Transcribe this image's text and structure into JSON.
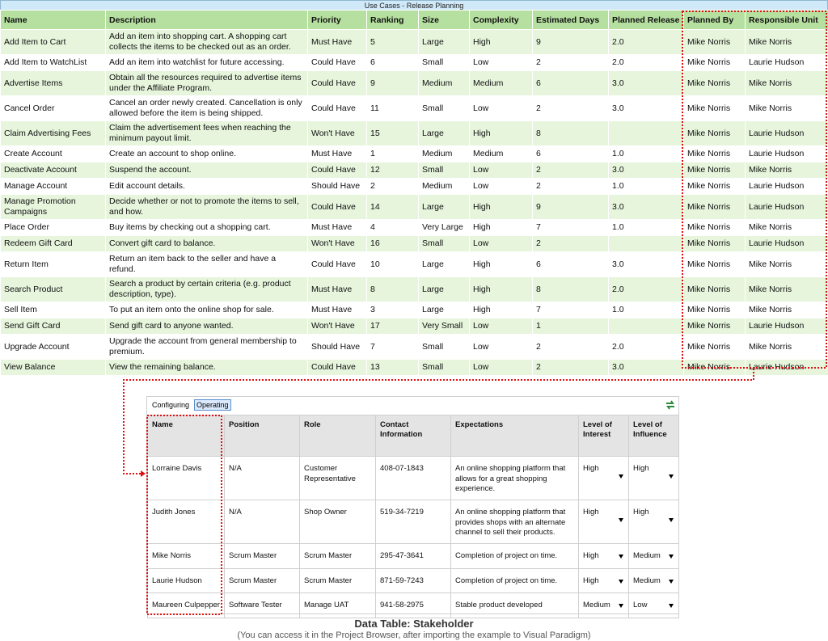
{
  "release_planning": {
    "title": "Use Cases - Release Planning",
    "columns": [
      "Name",
      "Description",
      "Priority",
      "Ranking",
      "Size",
      "Complexity",
      "Estimated Days",
      "Planned Release",
      "Planned By",
      "Responsible Unit"
    ],
    "rows": [
      [
        "Add Item to Cart",
        "Add an item into shopping cart. A shopping cart collects the items to be checked out as an order.",
        "Must Have",
        "5",
        "Large",
        "High",
        "9",
        "2.0",
        "Mike Norris",
        "Mike Norris"
      ],
      [
        "Add Item to WatchList",
        "Add an item into watchlist for future accessing.",
        "Could Have",
        "6",
        "Small",
        "Low",
        "2",
        "2.0",
        "Mike Norris",
        "Laurie Hudson"
      ],
      [
        "Advertise Items",
        "Obtain all the resources required to advertise items under the Affiliate Program.",
        "Could Have",
        "9",
        "Medium",
        "Medium",
        "6",
        "3.0",
        "Mike Norris",
        "Mike Norris"
      ],
      [
        "Cancel Order",
        "Cancel an order newly created. Cancellation is only allowed before the item is being shipped.",
        "Could Have",
        "11",
        "Small",
        "Low",
        "2",
        "3.0",
        "Mike Norris",
        "Mike Norris"
      ],
      [
        "Claim Advertising Fees",
        "Claim the advertisement fees when reaching the minimum payout limit.",
        "Won't Have",
        "15",
        "Large",
        "High",
        "8",
        null,
        "Mike Norris",
        "Laurie Hudson"
      ],
      [
        "Create Account",
        "Create an account to shop online.",
        "Must Have",
        "1",
        "Medium",
        "Medium",
        "6",
        "1.0",
        "Mike Norris",
        "Laurie Hudson"
      ],
      [
        "Deactivate Account",
        "Suspend the account.",
        "Could Have",
        "12",
        "Small",
        "Low",
        "2",
        "3.0",
        "Mike Norris",
        "Mike Norris"
      ],
      [
        "Manage Account",
        "Edit account details.",
        "Should Have",
        "2",
        "Medium",
        "Low",
        "2",
        "1.0",
        "Mike Norris",
        "Laurie Hudson"
      ],
      [
        "Manage Promotion Campaigns",
        "Decide whether or not to promote the items to sell, and how.",
        "Could Have",
        "14",
        "Large",
        "High",
        "9",
        "3.0",
        "Mike Norris",
        "Laurie Hudson"
      ],
      [
        "Place Order",
        "Buy items by checking out a shopping cart.",
        "Must Have",
        "4",
        "Very Large",
        "High",
        "7",
        "1.0",
        "Mike Norris",
        "Mike Norris"
      ],
      [
        "Redeem Gift Card",
        "Convert gift card to balance.",
        "Won't Have",
        "16",
        "Small",
        "Low",
        "2",
        null,
        "Mike Norris",
        "Laurie Hudson"
      ],
      [
        "Return Item",
        "Return an item back to the seller and have a refund.",
        "Could Have",
        "10",
        "Large",
        "High",
        "6",
        "3.0",
        "Mike Norris",
        "Mike Norris"
      ],
      [
        "Search Product",
        "Search a product by certain criteria (e.g. product description, type).",
        "Must Have",
        "8",
        "Large",
        "High",
        "8",
        "2.0",
        "Mike Norris",
        "Mike Norris"
      ],
      [
        "Sell Item",
        "To put an item onto the online shop for sale.",
        "Must Have",
        "3",
        "Large",
        "High",
        "7",
        "1.0",
        "Mike Norris",
        "Mike Norris"
      ],
      [
        "Send Gift Card",
        "Send gift card to anyone wanted.",
        "Won't Have",
        "17",
        "Very Small",
        "Low",
        "1",
        null,
        "Mike Norris",
        "Laurie Hudson"
      ],
      [
        "Upgrade Account",
        "Upgrade the account from general membership to premium.",
        "Should Have",
        "7",
        "Small",
        "Low",
        "2",
        "2.0",
        "Mike Norris",
        "Mike Norris"
      ],
      [
        "View Balance",
        "View the remaining balance.",
        "Could Have",
        "13",
        "Small",
        "Low",
        "2",
        "3.0",
        "Mike Norris",
        "Laurie Hudson"
      ]
    ]
  },
  "stakeholder_panel": {
    "tabs": [
      "Configuring",
      "Operating"
    ],
    "columns": [
      "Name",
      "Position",
      "Role",
      "Contact Information",
      "Expectations",
      "Level of Interest",
      "Level of Influence"
    ],
    "rows": [
      [
        "Lorraine Davis",
        "N/A",
        "Customer Representative",
        "408-07-1843",
        "An online shopping platform that allows for a great shopping experience.",
        "High",
        "High"
      ],
      [
        "Judith Jones",
        "N/A",
        "Shop Owner",
        "519-34-7219",
        "An online shopping platform that provides shops with an alternate channel to sell their products.",
        "High",
        "High"
      ],
      [
        "Mike Norris",
        "Scrum Master",
        "Scrum Master",
        "295-47-3641",
        "Completion of project on time.",
        "High",
        "Medium"
      ],
      [
        "Laurie Hudson",
        "Scrum Master",
        "Scrum Master",
        "871-59-7243",
        "Completion of project on time.",
        "High",
        "Medium"
      ],
      [
        "Maureen Culpepper",
        "Software Tester",
        "Manage UAT",
        "941-58-2975",
        "Stable product developed",
        "Medium",
        "Low"
      ]
    ]
  },
  "caption": {
    "title": "Data Table: Stakeholder",
    "note": "(You can access it in the Project Browser, after importing the example to Visual Paradigm)"
  }
}
